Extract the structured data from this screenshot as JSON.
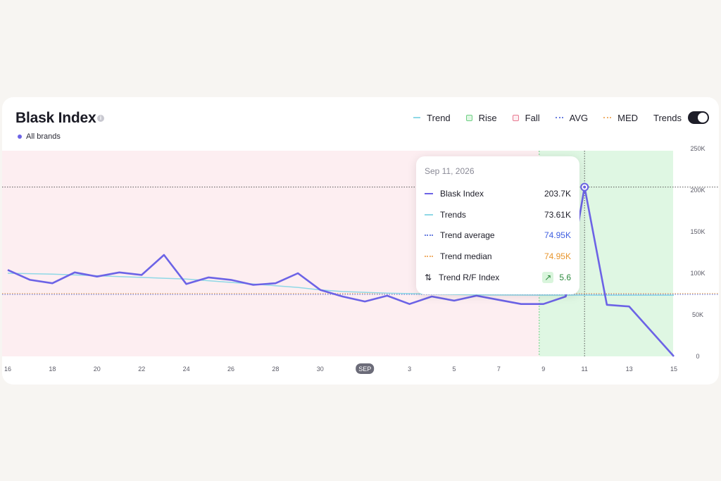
{
  "header": {
    "title": "Blask Index",
    "info_icon": "info-icon",
    "brand_filter": "All brands"
  },
  "legend": {
    "trend": "Trend",
    "rise": "Rise",
    "fall": "Fall",
    "avg": "AVG",
    "med": "MED",
    "trends_toggle": "Trends"
  },
  "colors": {
    "index_line": "#6c63e6",
    "trend_line": "#8fd8e6",
    "rise_fill": "#dff7e3",
    "fall_fill": "#fdeef1",
    "avg": "#6a7fe0",
    "median": "#f0b06a"
  },
  "tooltip": {
    "date": "Sep 11, 2026",
    "rows": [
      {
        "label": "Blask Index",
        "value": "203.7K"
      },
      {
        "label": "Trends",
        "value": "73.61K"
      },
      {
        "label": "Trend average",
        "value": "74.95K"
      },
      {
        "label": "Trend median",
        "value": "74.95K"
      },
      {
        "label": "Trend R/F Index",
        "value": "5.6"
      }
    ]
  },
  "chart_data": {
    "type": "line",
    "x_ticks": [
      "16",
      "18",
      "20",
      "22",
      "24",
      "26",
      "28",
      "30",
      "SEP",
      "3",
      "5",
      "7",
      "9",
      "11",
      "13",
      "15"
    ],
    "y_ticks": [
      "250K",
      "200K",
      "150K",
      "100K",
      "50K",
      "0"
    ],
    "ylim": [
      0,
      250000
    ],
    "x_start_day": "Aug 16",
    "series": [
      {
        "name": "Blask Index",
        "values": [
          104000,
          92000,
          88000,
          101000,
          96000,
          101000,
          98000,
          122000,
          87000,
          95000,
          92000,
          86000,
          88000,
          100000,
          80000,
          72000,
          66000,
          73000,
          63000,
          72000,
          67000,
          73000,
          68000,
          63000,
          63000,
          72000,
          203700,
          62000,
          60000,
          30000,
          0
        ]
      },
      {
        "name": "Trends",
        "values": [
          100000,
          99500,
          99000,
          98000,
          97000,
          96000,
          95000,
          94000,
          93000,
          91000,
          89000,
          87000,
          85000,
          83000,
          80000,
          78000,
          77000,
          76000,
          75500,
          75000,
          74500,
          74000,
          73800,
          73700,
          73650,
          73620,
          73610,
          73600,
          73600,
          73600,
          73600
        ]
      }
    ],
    "avg_line": 74950,
    "median_line": 74950,
    "fall_period": [
      "Aug 16",
      "Sep 9"
    ],
    "rise_period": [
      "Sep 9",
      "Sep 15"
    ],
    "highlight": {
      "day": "Sep 11",
      "value": 203700
    }
  }
}
